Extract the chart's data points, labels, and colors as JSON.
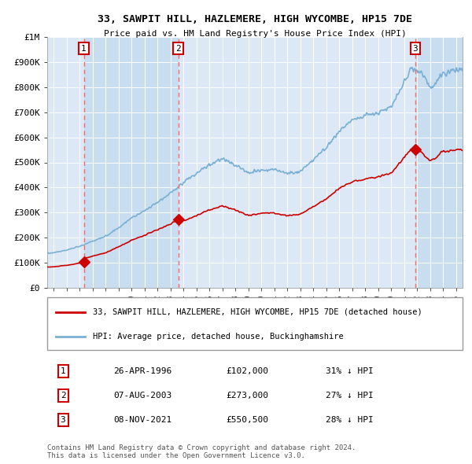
{
  "title": "33, SAWPIT HILL, HAZLEMERE, HIGH WYCOMBE, HP15 7DE",
  "subtitle": "Price paid vs. HM Land Registry's House Price Index (HPI)",
  "sales": [
    {
      "date": 1996.32,
      "price": 102000,
      "label": "1",
      "date_str": "26-APR-1996"
    },
    {
      "date": 2003.6,
      "price": 273000,
      "label": "2",
      "date_str": "07-AUG-2003"
    },
    {
      "date": 2021.86,
      "price": 550500,
      "label": "3",
      "date_str": "08-NOV-2021"
    }
  ],
  "hpi_color": "#7ab0d4",
  "sale_color": "#cc0000",
  "dashed_color": "#ff6666",
  "ylim": [
    0,
    1000000
  ],
  "xlim": [
    1993.5,
    2025.5
  ],
  "yticks": [
    0,
    100000,
    200000,
    300000,
    400000,
    500000,
    600000,
    700000,
    800000,
    900000,
    1000000
  ],
  "ytick_labels": [
    "£0",
    "£100K",
    "£200K",
    "£300K",
    "£400K",
    "£500K",
    "£600K",
    "£700K",
    "£800K",
    "£900K",
    "£1M"
  ],
  "xticks": [
    1994,
    1995,
    1996,
    1997,
    1998,
    1999,
    2000,
    2001,
    2002,
    2003,
    2004,
    2005,
    2006,
    2007,
    2008,
    2009,
    2010,
    2011,
    2012,
    2013,
    2014,
    2015,
    2016,
    2017,
    2018,
    2019,
    2020,
    2021,
    2022,
    2023,
    2024,
    2025
  ],
  "legend_sale_label": "33, SAWPIT HILL, HAZLEMERE, HIGH WYCOMBE, HP15 7DE (detached house)",
  "legend_hpi_label": "HPI: Average price, detached house, Buckinghamshire",
  "table_rows": [
    {
      "num": "1",
      "date": "26-APR-1996",
      "price": "£102,000",
      "pct": "31% ↓ HPI"
    },
    {
      "num": "2",
      "date": "07-AUG-2003",
      "price": "£273,000",
      "pct": "27% ↓ HPI"
    },
    {
      "num": "3",
      "date": "08-NOV-2021",
      "price": "£550,500",
      "pct": "28% ↓ HPI"
    }
  ],
  "footnote": "Contains HM Land Registry data © Crown copyright and database right 2024.\nThis data is licensed under the Open Government Licence v3.0.",
  "bg_color": "#ffffff",
  "plot_bg_color": "#dce8f5",
  "grid_color": "#ffffff",
  "shade_color": "#c8ddf0"
}
